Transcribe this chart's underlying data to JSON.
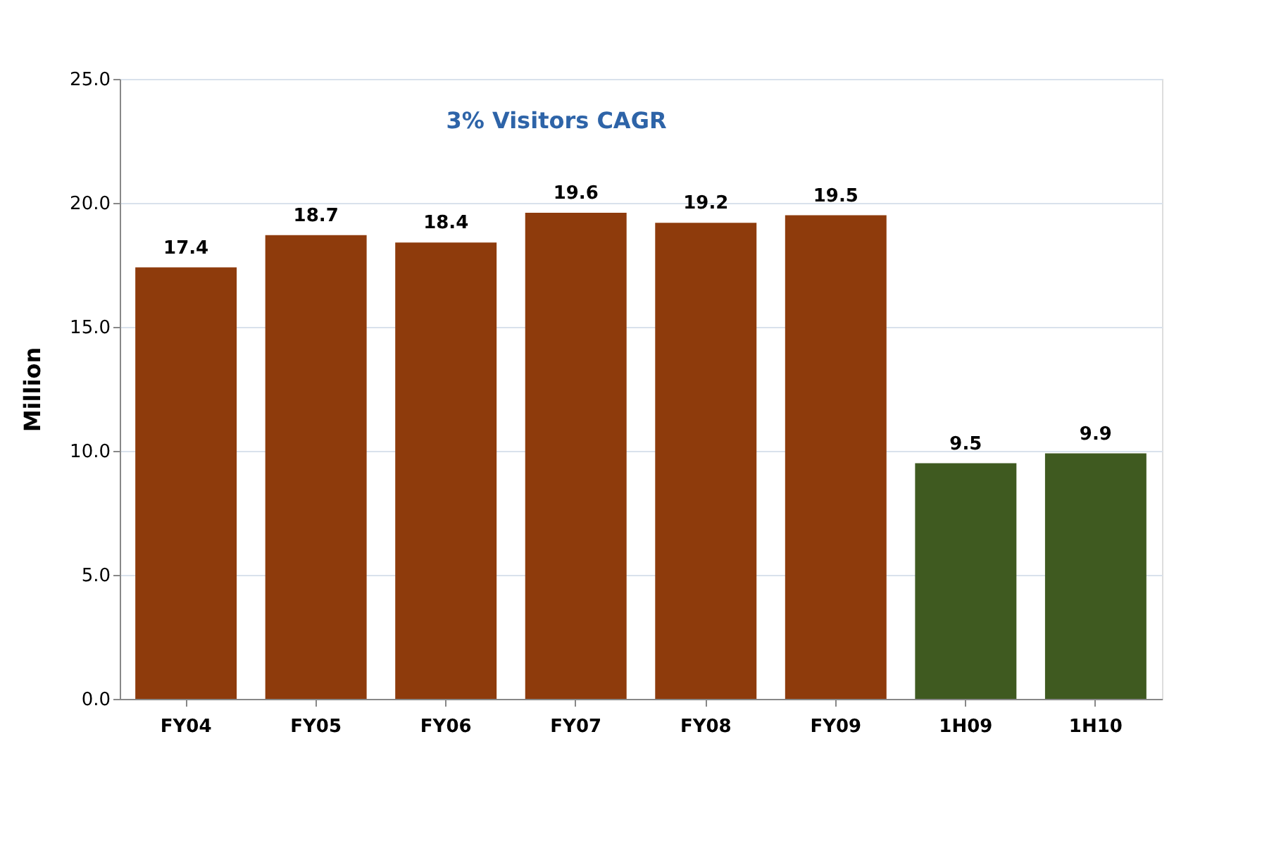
{
  "chart_data": {
    "type": "bar",
    "ylabel": "Million",
    "categories": [
      "FY04",
      "FY05",
      "FY06",
      "FY07",
      "FY08",
      "FY09",
      "1H09",
      "1H10"
    ],
    "values": [
      17.4,
      18.7,
      18.4,
      19.6,
      19.2,
      19.5,
      9.5,
      9.9
    ],
    "colors": [
      "#8e3b0c",
      "#8e3b0c",
      "#8e3b0c",
      "#8e3b0c",
      "#8e3b0c",
      "#8e3b0c",
      "#3f5a20",
      "#3f5a20"
    ],
    "ylim": [
      0,
      25
    ],
    "yticks": [
      {
        "value": 0,
        "label": "0.0"
      },
      {
        "value": 5,
        "label": "5.0"
      },
      {
        "value": 10,
        "label": "10.0"
      },
      {
        "value": 15,
        "label": "15.0"
      },
      {
        "value": 20,
        "label": "20.0"
      },
      {
        "value": 25,
        "label": "25.0"
      }
    ],
    "grid": "y",
    "data_labels": true,
    "annotations": [
      "3% Visitors CAGR"
    ]
  }
}
